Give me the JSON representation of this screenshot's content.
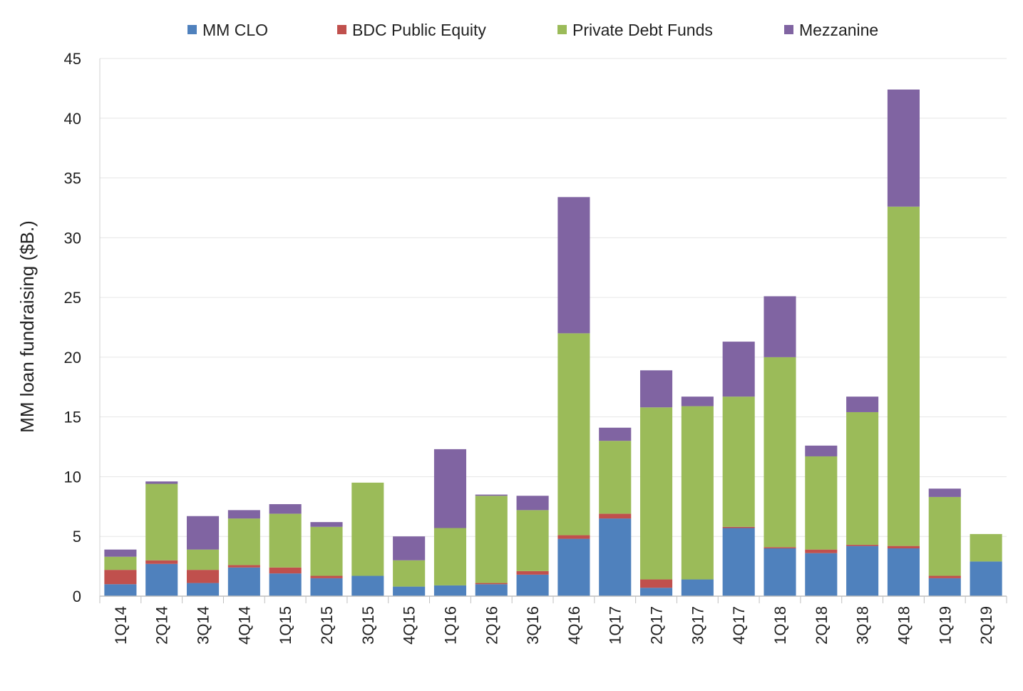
{
  "chart_data": {
    "type": "bar",
    "stacked": true,
    "title": "",
    "xlabel": "",
    "ylabel": "MM loan fundraising ($B.)",
    "ylim": [
      0,
      45
    ],
    "yticks": [
      0,
      5,
      10,
      15,
      20,
      25,
      30,
      35,
      40,
      45
    ],
    "grid": true,
    "legend_position": "top",
    "categories": [
      "1Q14",
      "2Q14",
      "3Q14",
      "4Q14",
      "1Q15",
      "2Q15",
      "3Q15",
      "4Q15",
      "1Q16",
      "2Q16",
      "3Q16",
      "4Q16",
      "1Q17",
      "2Q17",
      "3Q17",
      "4Q17",
      "1Q18",
      "2Q18",
      "3Q18",
      "4Q18",
      "1Q19",
      "2Q19"
    ],
    "series": [
      {
        "name": "MM CLO",
        "color": "#4f81bd",
        "values": [
          1.0,
          2.7,
          1.1,
          2.4,
          1.9,
          1.5,
          1.7,
          0.8,
          0.9,
          1.0,
          1.8,
          4.8,
          6.5,
          0.7,
          1.4,
          5.7,
          4.0,
          3.6,
          4.2,
          4.0,
          1.5,
          2.9
        ]
      },
      {
        "name": "BDC Public Equity",
        "color": "#c0504d",
        "values": [
          1.2,
          0.3,
          1.1,
          0.2,
          0.5,
          0.2,
          0.0,
          0.0,
          0.0,
          0.1,
          0.3,
          0.3,
          0.4,
          0.7,
          0.0,
          0.1,
          0.1,
          0.3,
          0.1,
          0.2,
          0.2,
          0.0
        ]
      },
      {
        "name": "Private Debt Funds",
        "color": "#9bbb59",
        "values": [
          1.1,
          6.4,
          1.7,
          3.9,
          4.5,
          4.1,
          7.8,
          2.2,
          4.8,
          7.3,
          5.1,
          16.9,
          6.1,
          14.4,
          14.5,
          10.9,
          15.9,
          7.8,
          11.1,
          28.4,
          6.6,
          2.3
        ]
      },
      {
        "name": "Mezzanine",
        "color": "#8064a2",
        "values": [
          0.6,
          0.2,
          2.8,
          0.7,
          0.8,
          0.4,
          0.0,
          2.0,
          6.6,
          0.1,
          1.2,
          11.4,
          1.1,
          3.1,
          0.8,
          4.6,
          5.1,
          0.9,
          1.3,
          9.8,
          0.7,
          0.0
        ]
      }
    ]
  }
}
